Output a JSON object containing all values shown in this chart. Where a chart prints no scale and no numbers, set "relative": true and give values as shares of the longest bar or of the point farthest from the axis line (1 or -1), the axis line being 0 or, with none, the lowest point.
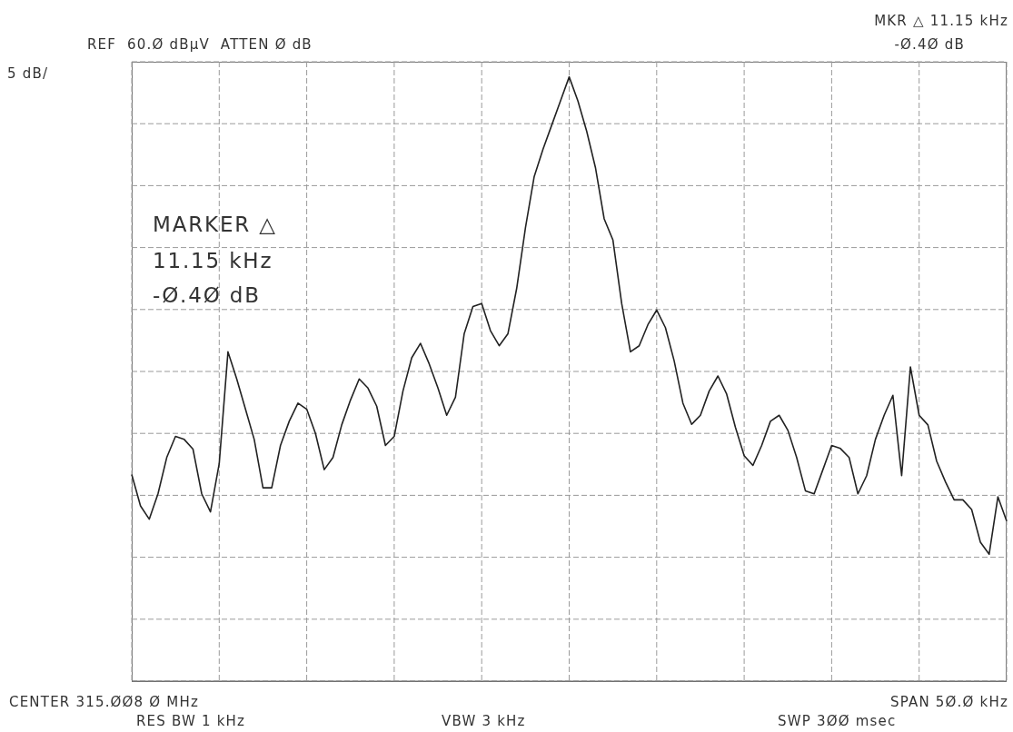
{
  "chart_data": {
    "type": "line",
    "relative": true,
    "grid": true,
    "color": "#222222",
    "categories": [
      null,
      null,
      null,
      null,
      null,
      null,
      null,
      null,
      null,
      null,
      null,
      null,
      null,
      null,
      null,
      null,
      null,
      null,
      null,
      null,
      null,
      null,
      null,
      null,
      null,
      null,
      null,
      null,
      null,
      null,
      null,
      null,
      null,
      null,
      null,
      null,
      null,
      null,
      null,
      null,
      null,
      null,
      null,
      null,
      null,
      null,
      null,
      null,
      null,
      null,
      null,
      null,
      null,
      null,
      null,
      null,
      null,
      null,
      null,
      null,
      null,
      null,
      null,
      null,
      null,
      null,
      null,
      null,
      null,
      null,
      null,
      null,
      null,
      null,
      null,
      null,
      null,
      null,
      null,
      null,
      null,
      null,
      null,
      null,
      null,
      null,
      null,
      null,
      null,
      null,
      null,
      null,
      null,
      null,
      null,
      null,
      null,
      null,
      null,
      null,
      null
    ],
    "values": [
      0.342,
      0.29,
      0.268,
      0.31,
      0.37,
      0.405,
      0.4,
      0.384,
      0.31,
      0.28,
      0.36,
      0.545,
      0.5,
      0.45,
      0.4,
      0.32,
      0.32,
      0.39,
      0.43,
      0.46,
      0.45,
      0.41,
      0.35,
      0.37,
      0.424,
      0.465,
      0.5,
      0.485,
      0.455,
      0.39,
      0.405,
      0.48,
      0.535,
      0.559,
      0.525,
      0.485,
      0.44,
      0.47,
      0.575,
      0.62,
      0.625,
      0.58,
      0.555,
      0.575,
      0.65,
      0.75,
      0.835,
      0.88,
      0.92,
      0.96,
      1,
      0.96,
      0.91,
      0.85,
      0.765,
      0.73,
      0.625,
      0.545,
      0.555,
      0.59,
      0.614,
      0.585,
      0.53,
      0.46,
      0.425,
      0.44,
      0.48,
      0.505,
      0.475,
      0.42,
      0.373,
      0.357,
      0.39,
      0.43,
      0.44,
      0.415,
      0.37,
      0.315,
      0.31,
      0.35,
      0.39,
      0.385,
      0.37,
      0.31,
      0.34,
      0.4,
      0.44,
      0.473,
      0.34,
      0.52,
      0.44,
      0.424,
      0.364,
      0.33,
      0.3,
      0.3,
      0.284,
      0.23,
      0.21,
      0.305,
      0.265
    ],
    "annotations": [
      "REF  60.Ø dBµV  ATTEN Ø dB",
      "MKR △ 11.15 kHz",
      "-Ø.4Ø dB",
      "5 dB/",
      "MARKER △",
      "11.15 kHz",
      "-Ø.4Ø dB",
      "CENTER 315.ØØ8 Ø MHz",
      "RES BW 1 kHz",
      "VBW 3 kHz",
      "SPAN 5Ø.Ø kHz",
      "SWP 3ØØ msec"
    ]
  }
}
